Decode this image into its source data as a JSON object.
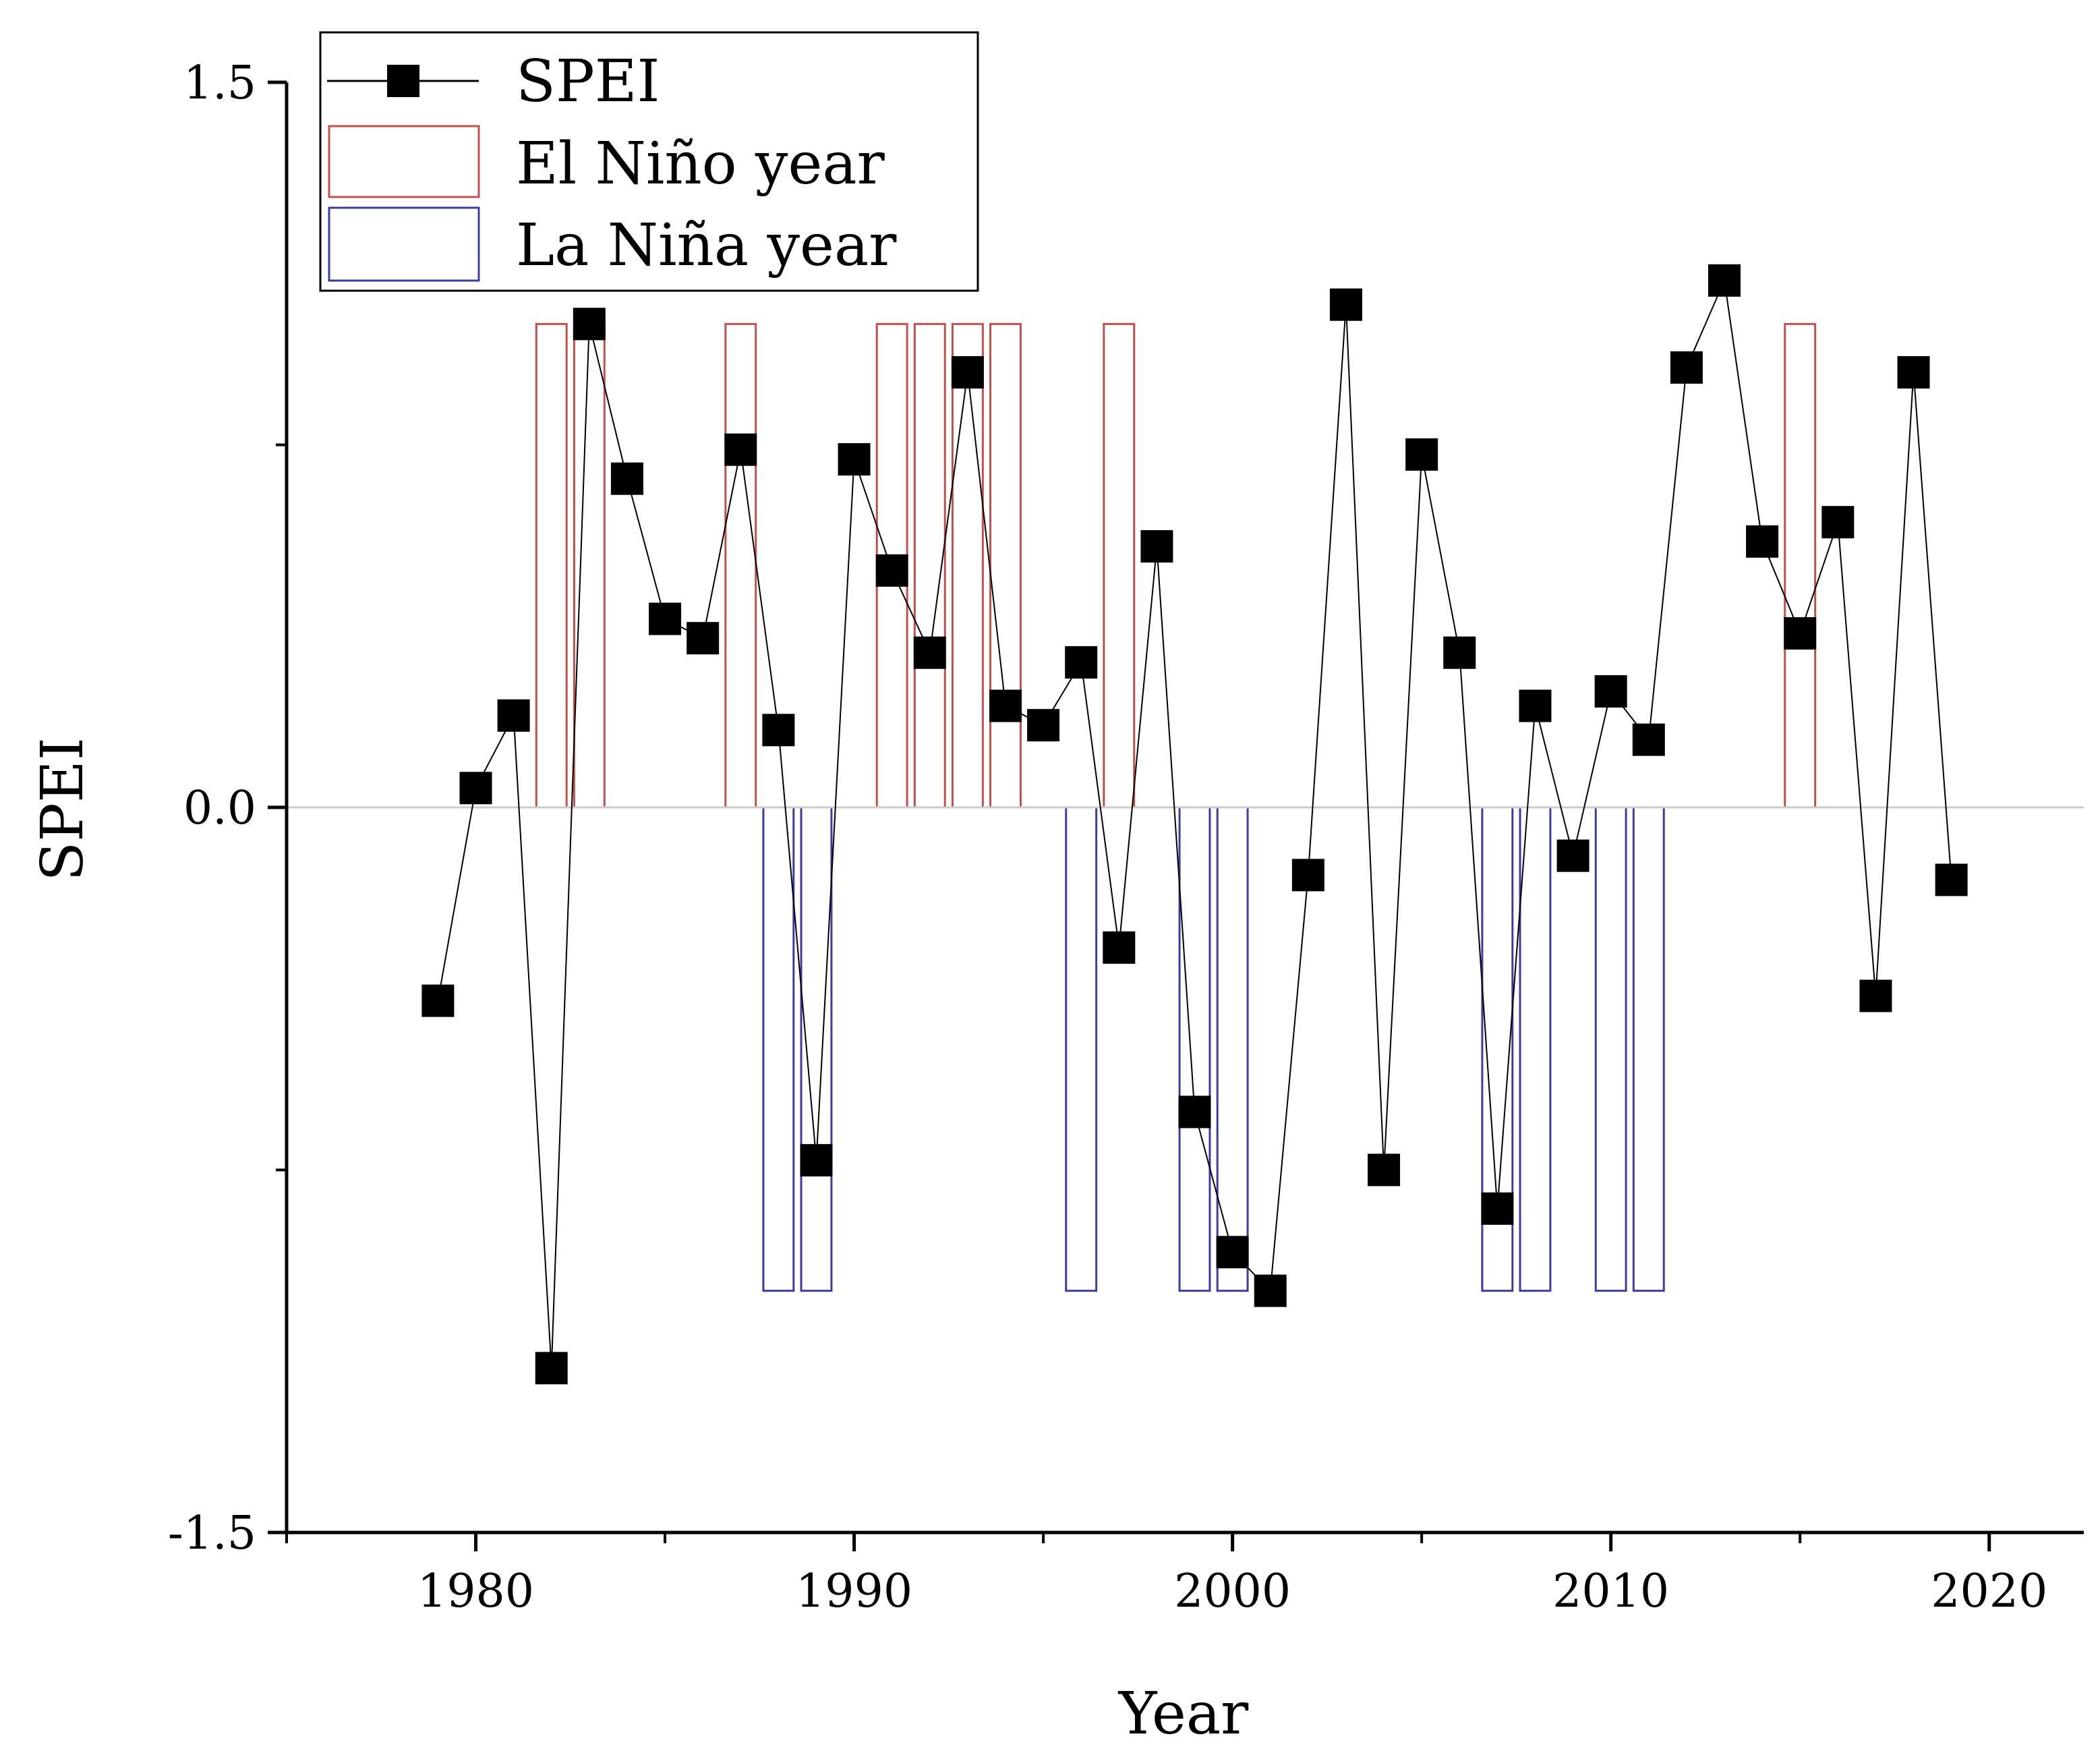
{
  "chart_data": {
    "type": "line",
    "title": "",
    "xlabel": "Year",
    "ylabel": "SPEI",
    "xlim": [
      1975,
      2022.5
    ],
    "ylim": [
      -1.5,
      1.5
    ],
    "x_ticks": [
      1980,
      1990,
      2000,
      2010,
      2020
    ],
    "y_tick_labels": [
      {
        "value": 1.5,
        "label": "1.5"
      },
      {
        "value": 0.0,
        "label": "0.0"
      },
      {
        "value": -1.5,
        "label": "-1.5"
      }
    ],
    "y_minor_ticks": [
      0.75,
      -0.75
    ],
    "zero_line": true,
    "bar_heights": {
      "el_nino": 1.0,
      "la_nina": -1.0
    },
    "bar_width_years": 0.8,
    "series": [
      {
        "name": "SPEI",
        "marker": "square",
        "color": "#000000",
        "x": [
          1979,
          1980,
          1981,
          1982,
          1983,
          1984,
          1985,
          1986,
          1987,
          1988,
          1989,
          1990,
          1991,
          1992,
          1993,
          1994,
          1995,
          1996,
          1997,
          1998,
          1999,
          2000,
          2001,
          2002,
          2003,
          2004,
          2005,
          2006,
          2007,
          2008,
          2009,
          2010,
          2011,
          2012,
          2013,
          2014,
          2015,
          2016,
          2017,
          2018,
          2019
        ],
        "y": [
          -0.4,
          0.04,
          0.19,
          -1.16,
          1.0,
          0.68,
          0.39,
          0.35,
          0.74,
          0.16,
          -0.73,
          0.72,
          0.49,
          0.32,
          0.9,
          0.21,
          0.17,
          0.3,
          -0.29,
          0.54,
          -0.63,
          -0.92,
          -1.0,
          -0.14,
          1.04,
          -0.75,
          0.73,
          0.32,
          -0.83,
          0.21,
          -0.1,
          0.24,
          0.14,
          0.91,
          1.09,
          0.55,
          0.36,
          0.59,
          -0.39,
          0.9,
          -0.15
        ]
      }
    ],
    "el_nino_years": [
      1982,
      1983,
      1987,
      1991,
      1992,
      1993,
      1994,
      1997,
      2015
    ],
    "la_nina_years": [
      1988,
      1989,
      1996,
      1999,
      2000,
      2007,
      2008,
      2010,
      2011
    ],
    "legend": {
      "position": "top-left",
      "spei_label": "SPEI",
      "el_nino_label": "El Niño year",
      "la_nina_label": "La Niña year"
    },
    "colors": {
      "spei": "#000000",
      "el_nino": "#c0504d",
      "la_nina": "#3b3ba0",
      "zero_line": "#cccccc",
      "axis": "#000000"
    }
  }
}
